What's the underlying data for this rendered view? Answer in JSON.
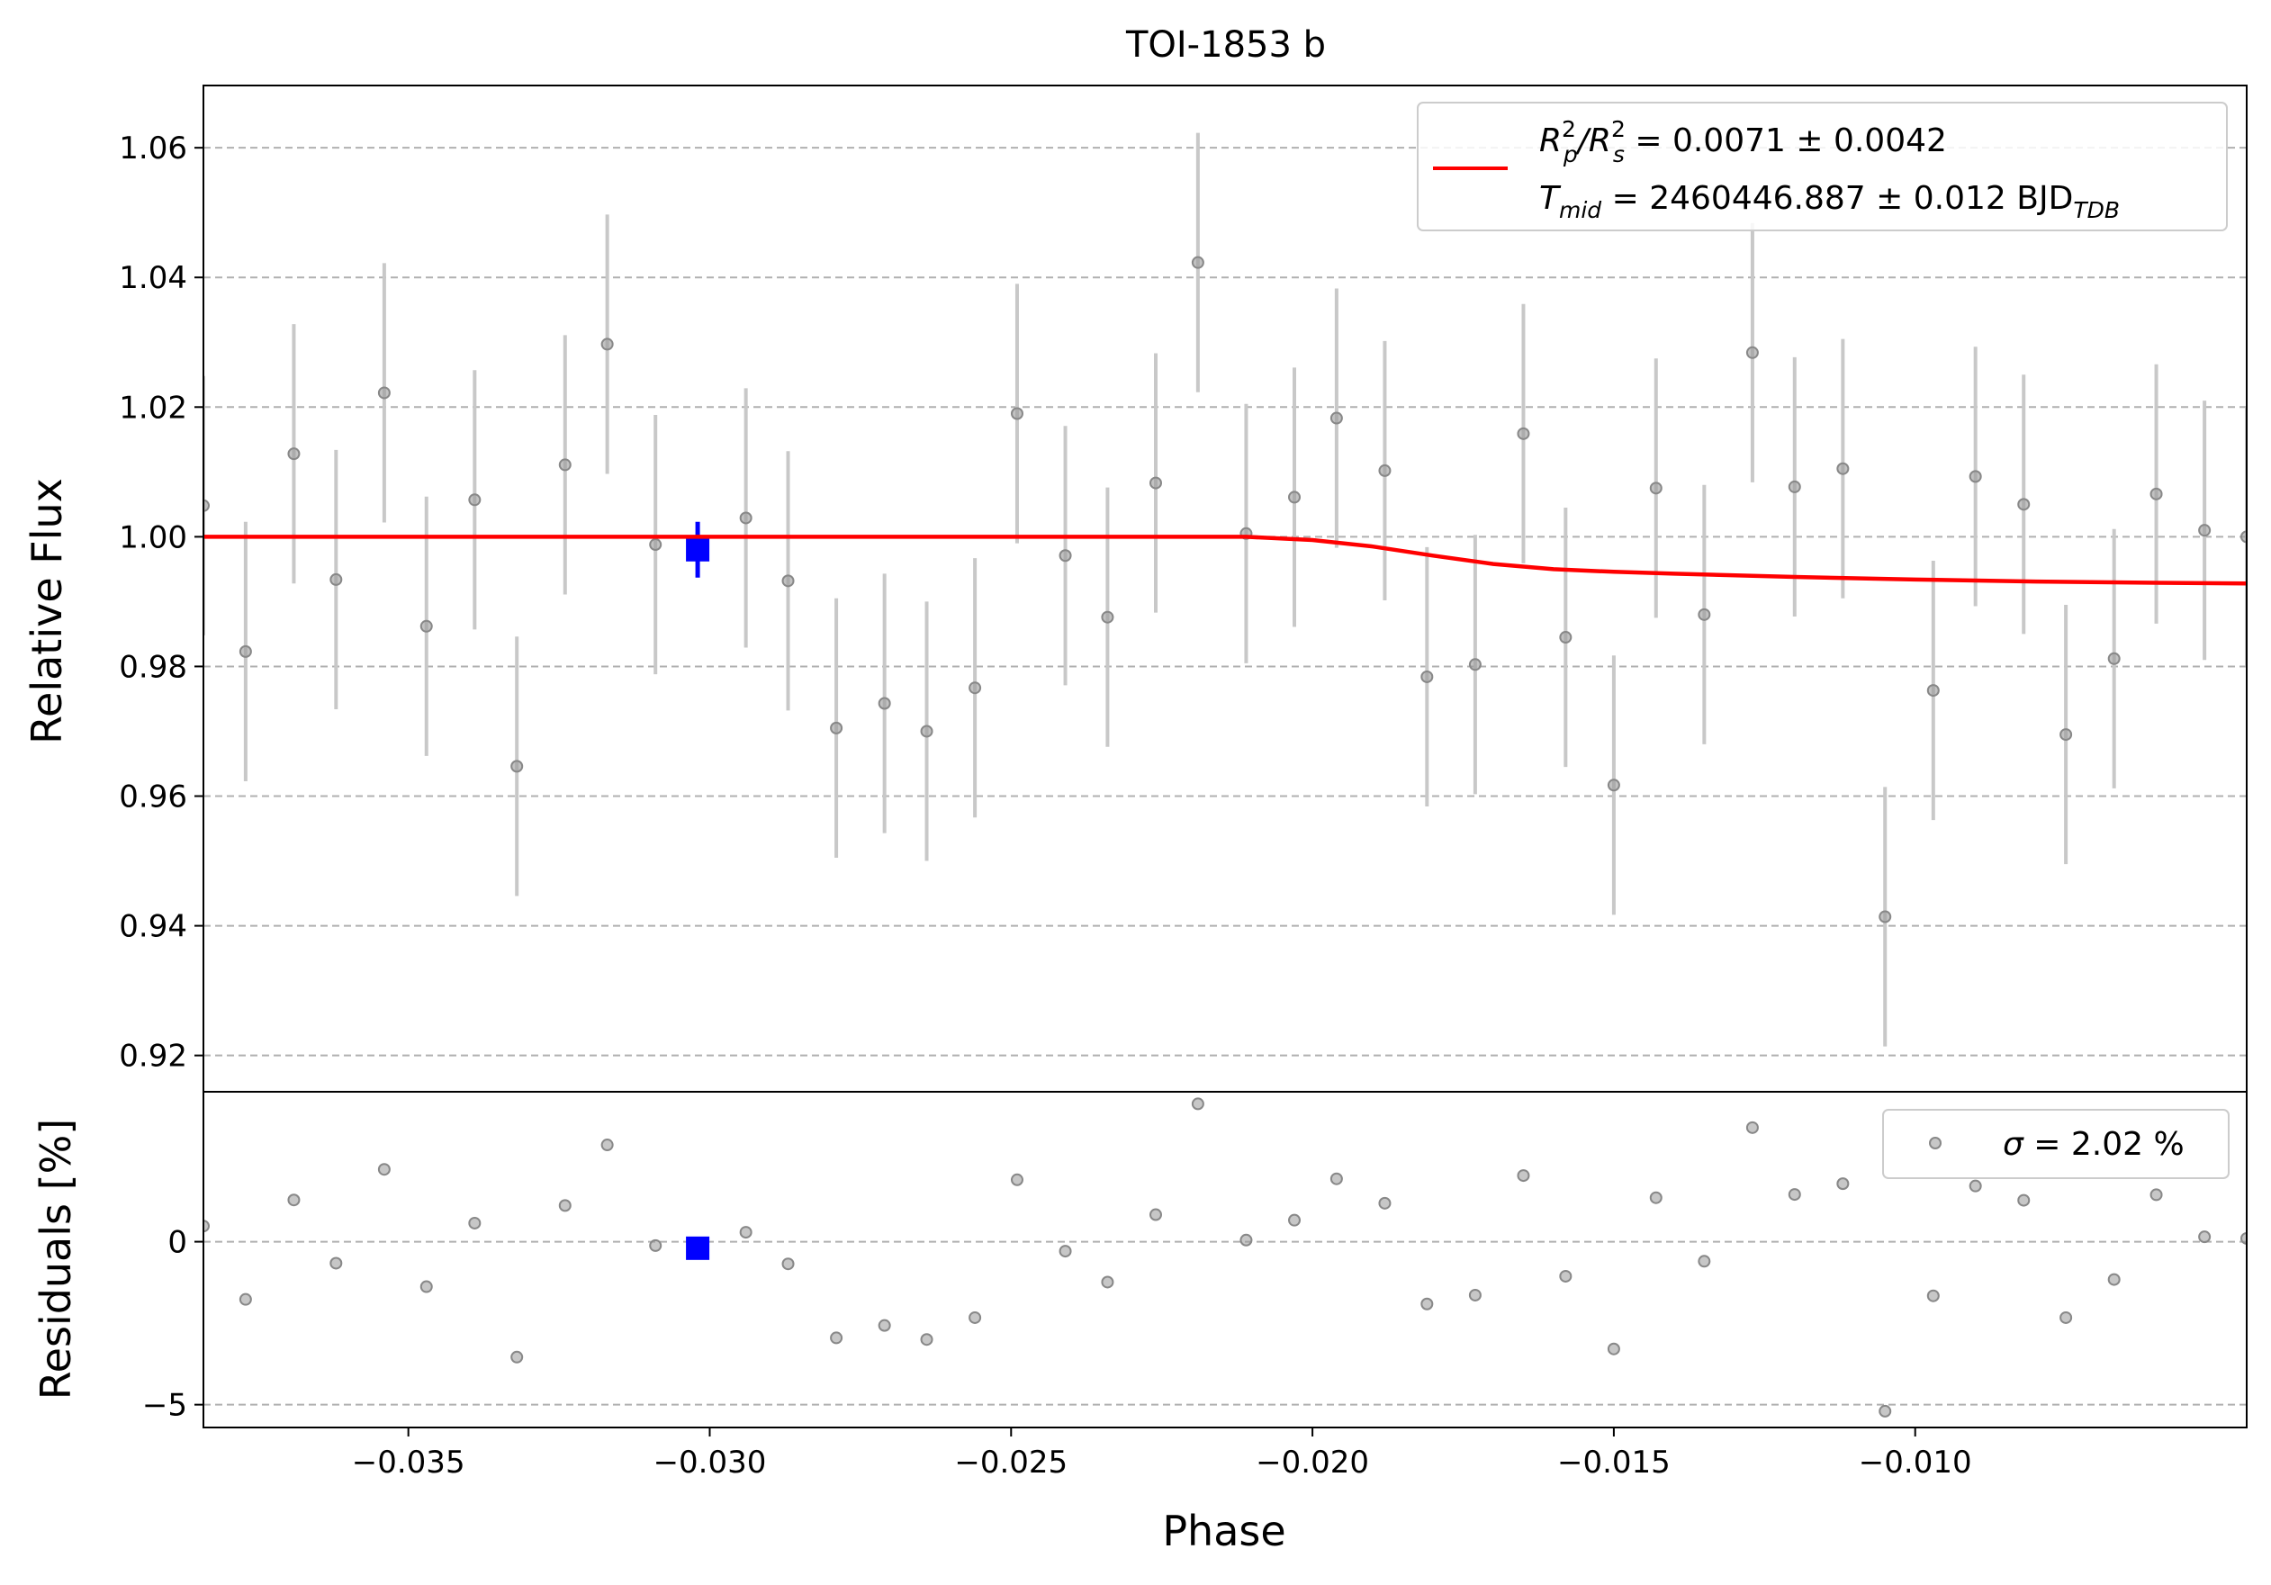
{
  "chart_data": [
    {
      "type": "scatter",
      "title": "TOI-1853 b",
      "ylabel": "Relative Flux",
      "xlim": [
        -0.0384,
        -0.0045
      ],
      "ylim": [
        0.9144,
        1.0696
      ],
      "yticks": [
        0.92,
        0.94,
        0.96,
        0.98,
        1.0,
        1.02,
        1.04,
        1.06
      ],
      "ytick_labels": [
        "0.92",
        "0.94",
        "0.96",
        "0.98",
        "1.00",
        "1.02",
        "1.04",
        "1.06"
      ],
      "grid": "y-dashed",
      "legend_position": "top-right",
      "legend": {
        "line1": {
          "main": "R",
          "sup1": "2",
          "sub1": "p",
          "mid": "/R",
          "sup2": "2",
          "sub2": "s",
          "tail": " = 0.0071 ± 0.0042"
        },
        "line2": {
          "main": "T",
          "sub1": "mid",
          "tail": " = 2460446.887 ± 0.012 BJD",
          "sub2": "TDB"
        }
      },
      "binned": {
        "color": "#999999",
        "yerr": 0.02,
        "x": [
          -0.0384,
          -0.0377,
          -0.0369,
          -0.0362,
          -0.0354,
          -0.0347,
          -0.0339,
          -0.0332,
          -0.0324,
          -0.0317,
          -0.0309,
          -0.0294,
          -0.0287,
          -0.0279,
          -0.0271,
          -0.0264,
          -0.0256,
          -0.0249,
          -0.0241,
          -0.0234,
          -0.0226,
          -0.0219,
          -0.0211,
          -0.0203,
          -0.0196,
          -0.0188,
          -0.0181,
          -0.0173,
          -0.0165,
          -0.0158,
          -0.015,
          -0.0143,
          -0.0135,
          -0.0127,
          -0.012,
          -0.0112,
          -0.0105,
          -0.0097,
          -0.009,
          -0.0082,
          -0.0075,
          -0.0067,
          -0.006,
          -0.0052,
          -0.0045
        ],
        "y": [
          1.0048,
          0.9823,
          1.0128,
          0.9934,
          1.0222,
          0.9862,
          1.0057,
          0.9646,
          1.0111,
          1.0297,
          0.9988,
          1.0029,
          0.9932,
          0.9705,
          0.9743,
          0.97,
          0.9767,
          1.019,
          0.9971,
          0.9876,
          1.0083,
          1.0423,
          1.0005,
          1.0061,
          1.0183,
          1.0102,
          0.9784,
          0.9803,
          1.0159,
          0.9845,
          0.9617,
          1.0075,
          0.988,
          1.0284,
          1.0077,
          1.0105,
          0.9414,
          0.9763,
          1.0093,
          1.005,
          0.9695,
          0.9812,
          1.0066,
          1.001,
          1.0
        ]
      },
      "highlight": {
        "color": "#0000ff",
        "x": -0.0302,
        "y": 0.998,
        "yerr": 0.0043
      },
      "model": {
        "color": "#ff0000",
        "x": [
          -0.0384,
          -0.0211,
          -0.02,
          -0.019,
          -0.018,
          -0.017,
          -0.016,
          -0.015,
          -0.014,
          -0.012,
          -0.01,
          -0.008,
          -0.006,
          -0.0045
        ],
        "y": [
          1.0,
          1.0,
          0.9995,
          0.9985,
          0.9971,
          0.9958,
          0.995,
          0.9946,
          0.9943,
          0.9938,
          0.9934,
          0.9931,
          0.9929,
          0.9928
        ]
      }
    },
    {
      "type": "scatter",
      "xlabel": "Phase",
      "ylabel": "Residuals [%]",
      "xlim": [
        -0.0384,
        -0.0045
      ],
      "ylim": [
        -5.7,
        4.6
      ],
      "yticks": [
        -5,
        0
      ],
      "ytick_labels": [
        "−5",
        "0"
      ],
      "xticks": [
        -0.035,
        -0.03,
        -0.025,
        -0.02,
        -0.015,
        -0.01
      ],
      "xtick_labels": [
        "−0.035",
        "−0.030",
        "−0.025",
        "−0.020",
        "−0.015",
        "−0.010"
      ],
      "grid": "y-dashed",
      "legend_position": "top-right",
      "legend": {
        "sym": "σ",
        "tail": " = 2.02 %"
      },
      "residuals": {
        "color": "#999999",
        "x": [
          -0.0384,
          -0.0377,
          -0.0369,
          -0.0362,
          -0.0354,
          -0.0347,
          -0.0339,
          -0.0332,
          -0.0324,
          -0.0317,
          -0.0309,
          -0.0294,
          -0.0287,
          -0.0279,
          -0.0271,
          -0.0264,
          -0.0256,
          -0.0249,
          -0.0241,
          -0.0234,
          -0.0226,
          -0.0219,
          -0.0211,
          -0.0203,
          -0.0196,
          -0.0188,
          -0.0181,
          -0.0173,
          -0.0165,
          -0.0158,
          -0.015,
          -0.0143,
          -0.0135,
          -0.0127,
          -0.012,
          -0.0112,
          -0.0105,
          -0.0097,
          -0.009,
          -0.0082,
          -0.0075,
          -0.0067,
          -0.006,
          -0.0052,
          -0.0045
        ],
        "y": [
          0.48,
          -1.77,
          1.28,
          -0.66,
          2.22,
          -1.38,
          0.57,
          -3.54,
          1.11,
          2.97,
          -0.12,
          0.29,
          -0.68,
          -2.95,
          -2.57,
          -3.0,
          -2.33,
          1.9,
          -0.29,
          -1.24,
          0.83,
          4.23,
          0.05,
          0.66,
          1.93,
          1.18,
          -1.91,
          -1.64,
          2.03,
          -1.06,
          -3.29,
          1.35,
          -0.6,
          3.5,
          1.45,
          1.78,
          -5.2,
          -1.66,
          1.71,
          1.27,
          -2.33,
          -1.16,
          1.44,
          0.15,
          0.1
        ]
      },
      "highlight": {
        "color": "#0000ff",
        "x": -0.0302,
        "y": -0.2
      }
    }
  ]
}
